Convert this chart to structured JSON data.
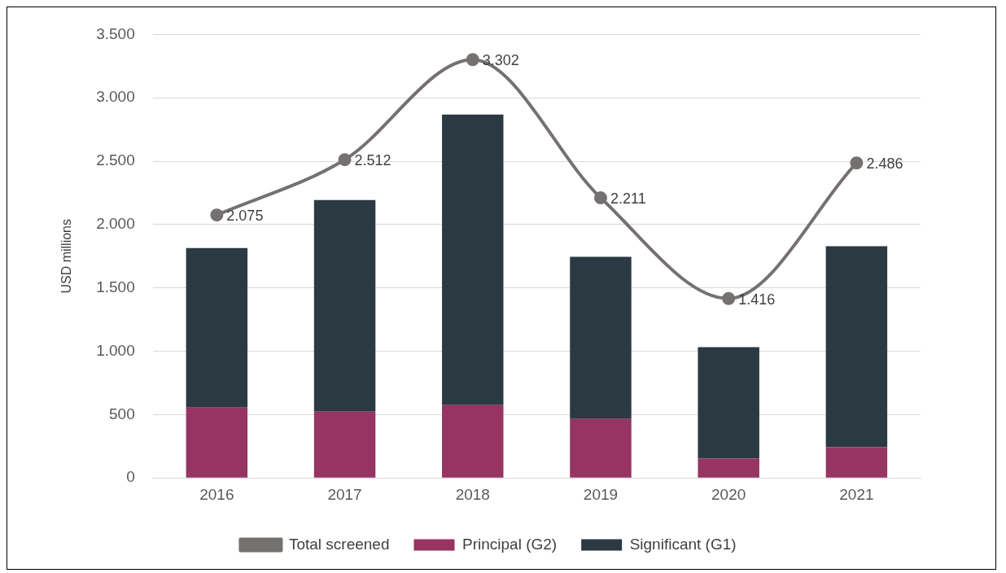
{
  "chart_data": {
    "type": "bar",
    "ylabel": "USD millions",
    "categories": [
      "2016",
      "2017",
      "2018",
      "2019",
      "2020",
      "2021"
    ],
    "stacked": true,
    "series": [
      {
        "name": "Principal (G2)",
        "color": "#963462",
        "values": [
          555,
          523,
          574,
          465,
          153,
          242
        ]
      },
      {
        "name": "Significant (G1)",
        "color": "#2b3a42",
        "values": [
          1260,
          1670,
          2294,
          1281,
          879,
          1587
        ]
      },
      {
        "name": "Total screened",
        "type": "line",
        "color": "#767171",
        "marker": "circle",
        "values": [
          2075,
          2512,
          3302,
          2211,
          1416,
          2486
        ],
        "value_labels": [
          "2.075",
          "2.512",
          "3.302",
          "2.211",
          "1.416",
          "2.486"
        ]
      }
    ],
    "ylim": [
      0,
      3500
    ],
    "yticks": [
      0,
      {
        "value": 500,
        "label": "500"
      },
      {
        "value": 1000,
        "label": "1.000"
      },
      {
        "value": 1500,
        "label": "1.500"
      },
      {
        "value": 2000,
        "label": "2.000"
      },
      {
        "value": 2500,
        "label": "2.500"
      },
      {
        "value": 3000,
        "label": "3.000"
      },
      {
        "value": 3500,
        "label": "3.500"
      }
    ],
    "grid": "y",
    "legend": "bottom"
  }
}
